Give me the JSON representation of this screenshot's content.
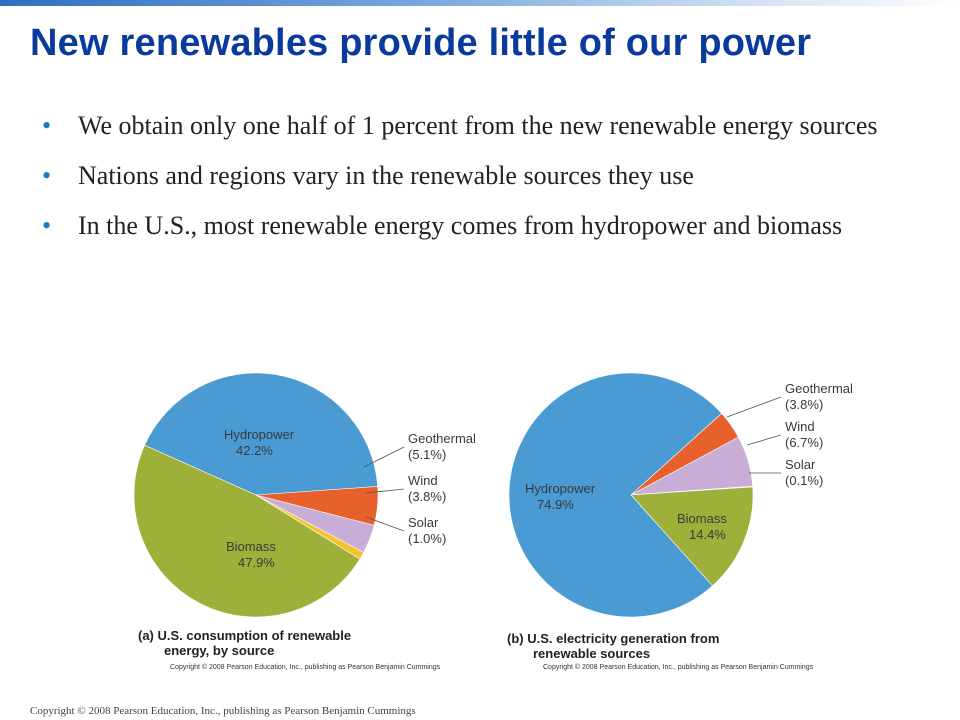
{
  "slide": {
    "title": "New renewables provide little of our power",
    "bullets": [
      "We obtain only one half of 1 percent from the new renewable energy sources",
      "Nations and regions vary in the renewable sources they use",
      "In the U.S., most renewable energy comes from hydropower and biomass"
    ],
    "footer": "Copyright © 2008 Pearson Education, Inc., publishing as Pearson Benjamin Cummings"
  },
  "colors": {
    "title": "#0a3b9c",
    "bullet": "#1a7bb8",
    "hydropower": "#4a9ad4",
    "biomass": "#9fb03a",
    "geothermal": "#e8602c",
    "wind": "#c8aed6",
    "solar": "#f4c430"
  },
  "chart_data": [
    {
      "type": "pie",
      "caption_line1": "(a) U.S. consumption of renewable",
      "caption_line2": "energy, by source",
      "copyright": "Copyright © 2008 Pearson Education, Inc., publishing as Pearson Benjamin Cummings",
      "slices": [
        {
          "name": "Hydropower",
          "value": 42.2,
          "label": "42.2%",
          "color_key": "hydropower"
        },
        {
          "name": "Geothermal",
          "value": 5.1,
          "label": "(5.1%)",
          "color_key": "geothermal"
        },
        {
          "name": "Wind",
          "value": 3.8,
          "label": "(3.8%)",
          "color_key": "wind"
        },
        {
          "name": "Solar",
          "value": 1.0,
          "label": "(1.0%)",
          "color_key": "solar"
        },
        {
          "name": "Biomass",
          "value": 47.9,
          "label": "47.9%",
          "color_key": "biomass"
        }
      ]
    },
    {
      "type": "pie",
      "caption_line1": "(b) U.S. electricity generation from",
      "caption_line2": "renewable sources",
      "copyright": "Copyright © 2008 Pearson Education, Inc., publishing as Pearson Benjamin Cummings",
      "slices": [
        {
          "name": "Hydropower",
          "value": 74.9,
          "label": "74.9%",
          "color_key": "hydropower"
        },
        {
          "name": "Geothermal",
          "value": 3.8,
          "label": "(3.8%)",
          "color_key": "geothermal"
        },
        {
          "name": "Wind",
          "value": 6.7,
          "label": "(6.7%)",
          "color_key": "wind"
        },
        {
          "name": "Solar",
          "value": 0.1,
          "label": "(0.1%)",
          "color_key": "solar"
        },
        {
          "name": "Biomass",
          "value": 14.4,
          "label": "14.4%",
          "color_key": "biomass"
        }
      ]
    }
  ]
}
